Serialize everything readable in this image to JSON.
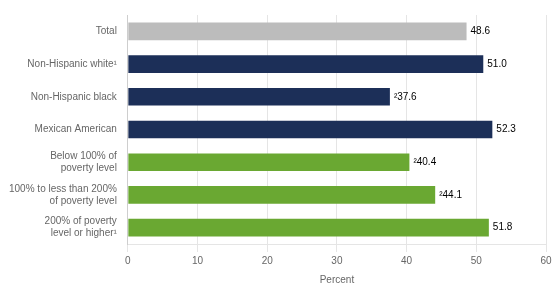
{
  "chart_data": {
    "type": "bar",
    "orientation": "horizontal",
    "categories": [
      "Total",
      "Non-Hispanic white¹",
      "Non-Hispanic black",
      "Mexican American",
      "Below 100% of\npoverty level",
      "100% to less than 200%\nof poverty level",
      "200% of poverty\nlevel or higher¹"
    ],
    "values": [
      48.6,
      51.0,
      37.6,
      52.3,
      40.4,
      44.1,
      51.8
    ],
    "value_labels": [
      "48.6",
      "51.0",
      "²37.6",
      "52.3",
      "²40.4",
      "²44.1",
      "51.8"
    ],
    "colors": [
      "#bcbcbc",
      "#1c2f58",
      "#1c2f58",
      "#1c2f58",
      "#6aa832",
      "#6aa832",
      "#6aa832"
    ],
    "xlabel": "Percent",
    "xlim": [
      0,
      60
    ],
    "xticks": [
      0,
      10,
      20,
      30,
      40,
      50,
      60
    ],
    "grid": true,
    "data_labels": true
  }
}
